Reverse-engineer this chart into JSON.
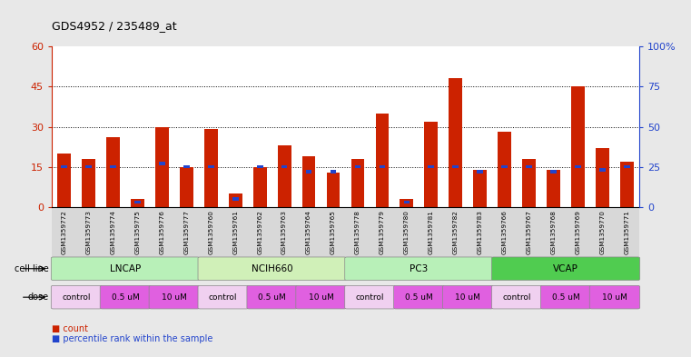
{
  "title": "GDS4952 / 235489_at",
  "samples": [
    "GSM1359772",
    "GSM1359773",
    "GSM1359774",
    "GSM1359775",
    "GSM1359776",
    "GSM1359777",
    "GSM1359760",
    "GSM1359761",
    "GSM1359762",
    "GSM1359763",
    "GSM1359764",
    "GSM1359765",
    "GSM1359778",
    "GSM1359779",
    "GSM1359780",
    "GSM1359781",
    "GSM1359782",
    "GSM1359783",
    "GSM1359766",
    "GSM1359767",
    "GSM1359768",
    "GSM1359769",
    "GSM1359770",
    "GSM1359771"
  ],
  "counts": [
    20,
    18,
    26,
    3,
    30,
    15,
    29,
    5,
    15,
    23,
    19,
    13,
    18,
    35,
    3,
    32,
    48,
    14,
    28,
    18,
    14,
    45,
    22,
    17
  ],
  "percentile_ranks": [
    25,
    25,
    25,
    3,
    27,
    25,
    25,
    5,
    25,
    25,
    22,
    22,
    25,
    25,
    3,
    25,
    25,
    22,
    25,
    25,
    22,
    25,
    23,
    25
  ],
  "cell_lines": [
    {
      "name": "LNCAP",
      "start": 0,
      "end": 6,
      "color": "#b8f0b8"
    },
    {
      "name": "NCIH660",
      "start": 6,
      "end": 12,
      "color": "#d0f0b8"
    },
    {
      "name": "PC3",
      "start": 12,
      "end": 18,
      "color": "#b8f0b8"
    },
    {
      "name": "VCAP",
      "start": 18,
      "end": 24,
      "color": "#50cc50"
    }
  ],
  "dose_groups": [
    {
      "label": "control",
      "start": 0,
      "end": 2,
      "color": "#f0d0f0"
    },
    {
      "label": "0.5 uM",
      "start": 2,
      "end": 4,
      "color": "#e060e0"
    },
    {
      "label": "10 uM",
      "start": 4,
      "end": 6,
      "color": "#e060e0"
    },
    {
      "label": "control",
      "start": 6,
      "end": 8,
      "color": "#f0d0f0"
    },
    {
      "label": "0.5 uM",
      "start": 8,
      "end": 10,
      "color": "#e060e0"
    },
    {
      "label": "10 uM",
      "start": 10,
      "end": 12,
      "color": "#e060e0"
    },
    {
      "label": "control",
      "start": 12,
      "end": 14,
      "color": "#f0d0f0"
    },
    {
      "label": "0.5 uM",
      "start": 14,
      "end": 16,
      "color": "#e060e0"
    },
    {
      "label": "10 uM",
      "start": 16,
      "end": 18,
      "color": "#e060e0"
    },
    {
      "label": "control",
      "start": 18,
      "end": 20,
      "color": "#f0d0f0"
    },
    {
      "label": "0.5 uM",
      "start": 20,
      "end": 22,
      "color": "#e060e0"
    },
    {
      "label": "10 uM",
      "start": 22,
      "end": 24,
      "color": "#e060e0"
    }
  ],
  "bar_color": "#cc2200",
  "percentile_color": "#2244cc",
  "ylim_left": [
    0,
    60
  ],
  "ylim_right": [
    0,
    100
  ],
  "yticks_left": [
    0,
    15,
    30,
    45,
    60
  ],
  "yticks_right": [
    0,
    25,
    50,
    75,
    100
  ],
  "ytick_labels_right": [
    "0",
    "25",
    "50",
    "75",
    "100%"
  ],
  "grid_values": [
    15,
    30,
    45
  ],
  "bg_color": "#e8e8e8",
  "plot_bg": "#ffffff"
}
